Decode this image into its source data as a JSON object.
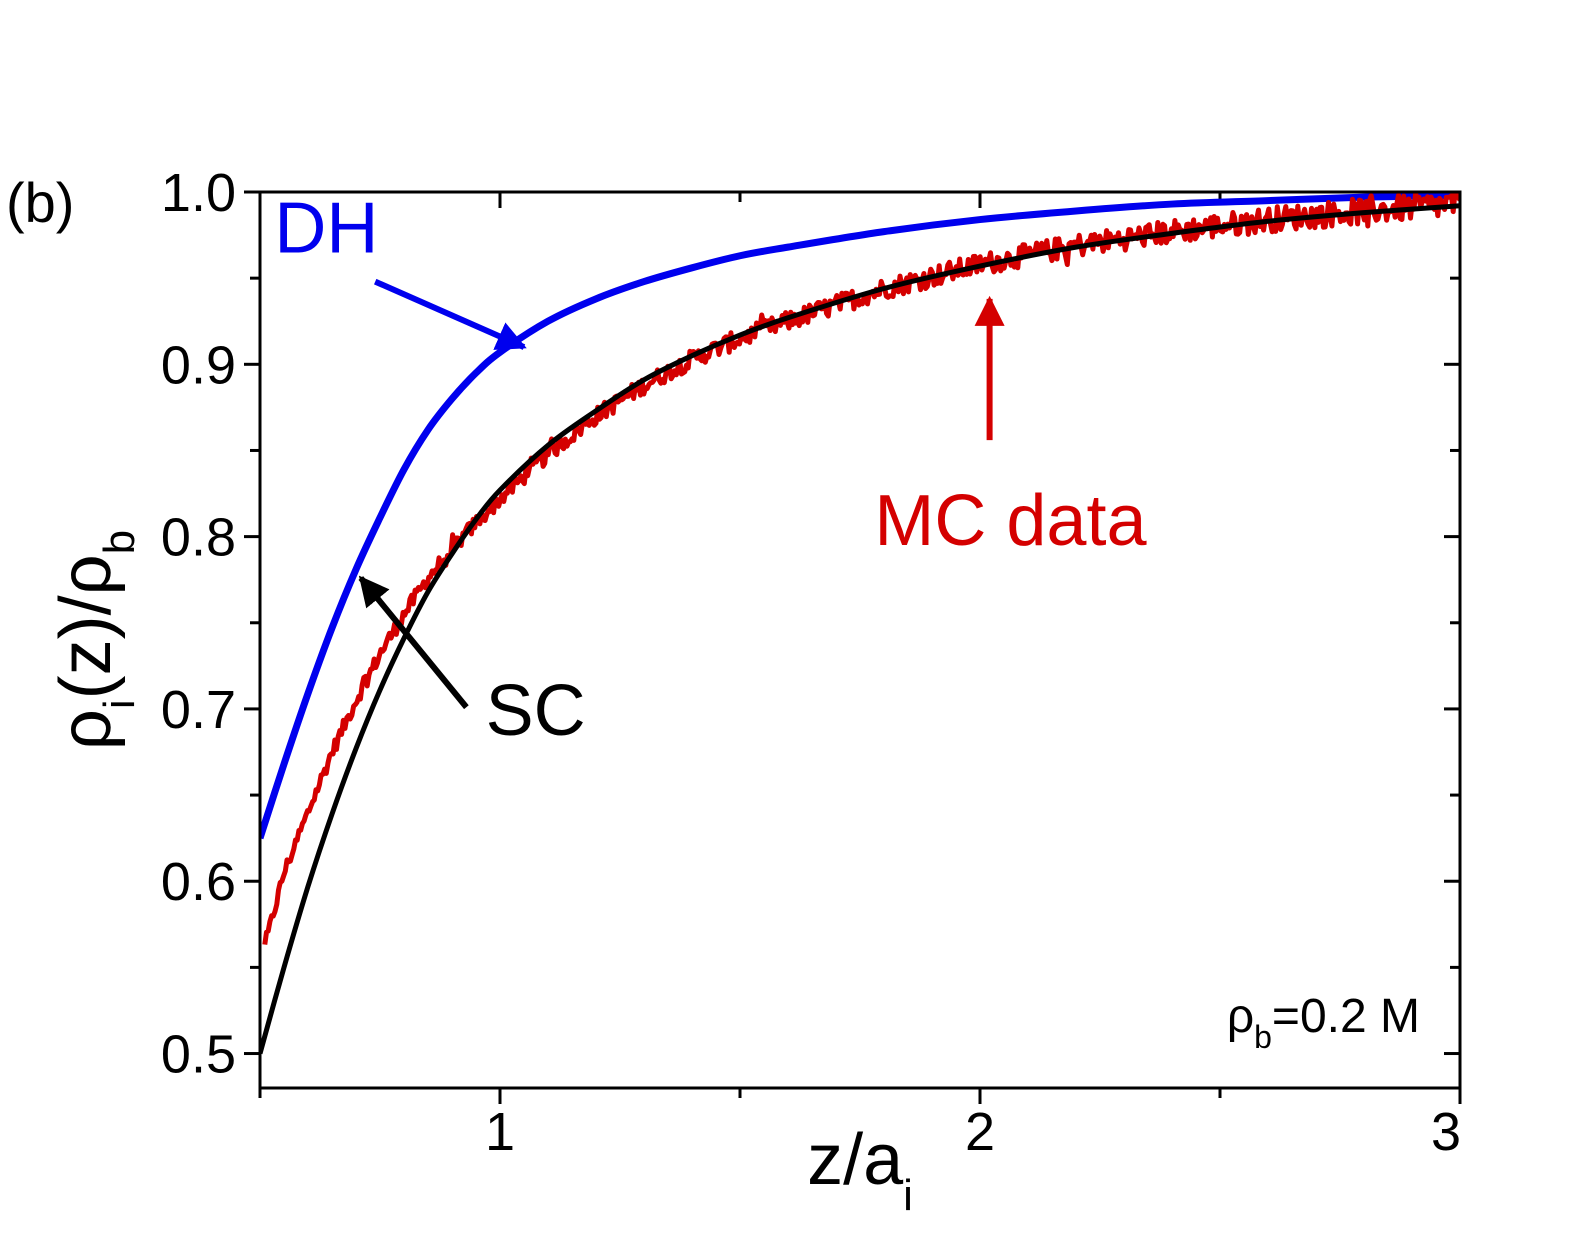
{
  "panel_label": "(b)",
  "chart_data": {
    "type": "line",
    "xlabel": "z/a",
    "xlabel_sub": "i",
    "ylabel_parts": [
      "ρ",
      "i",
      "(z)/ρ",
      "b"
    ],
    "xlim": [
      0.5,
      3.0
    ],
    "ylim": [
      0.48,
      1.0
    ],
    "xticks": [
      1,
      2,
      3
    ],
    "xtick_labels": [
      "1",
      "2",
      "3"
    ],
    "yticks": [
      0.5,
      0.6,
      0.7,
      0.8,
      0.9,
      1.0
    ],
    "ytick_labels": [
      "0.5",
      "0.6",
      "0.7",
      "0.8",
      "0.9",
      "1.0"
    ],
    "legend": "none",
    "grid": false,
    "series": [
      {
        "name": "DH",
        "color": "#0000ee",
        "x": [
          0.5,
          0.55,
          0.6,
          0.65,
          0.7,
          0.75,
          0.8,
          0.85,
          0.9,
          0.95,
          1.0,
          1.1,
          1.2,
          1.3,
          1.4,
          1.5,
          1.6,
          1.8,
          2.0,
          2.2,
          2.4,
          2.6,
          2.8,
          3.0
        ],
        "y": [
          0.625,
          0.668,
          0.709,
          0.747,
          0.781,
          0.811,
          0.839,
          0.862,
          0.88,
          0.895,
          0.907,
          0.925,
          0.938,
          0.948,
          0.956,
          0.963,
          0.968,
          0.977,
          0.984,
          0.989,
          0.993,
          0.995,
          0.997,
          0.998
        ]
      },
      {
        "name": "MC data",
        "color": "#d40000",
        "x": [
          0.51,
          0.55,
          0.6,
          0.65,
          0.7,
          0.75,
          0.8,
          0.85,
          0.9,
          0.95,
          1.0,
          1.1,
          1.2,
          1.3,
          1.4,
          1.5,
          1.6,
          1.8,
          2.0,
          2.2,
          2.4,
          2.6,
          2.8,
          3.0
        ],
        "y": [
          0.562,
          0.605,
          0.64,
          0.675,
          0.705,
          0.732,
          0.755,
          0.776,
          0.793,
          0.808,
          0.822,
          0.848,
          0.87,
          0.888,
          0.903,
          0.915,
          0.925,
          0.944,
          0.958,
          0.969,
          0.977,
          0.984,
          0.989,
          0.993
        ]
      },
      {
        "name": "SC",
        "color": "#000000",
        "x": [
          0.5,
          0.55,
          0.6,
          0.65,
          0.7,
          0.75,
          0.8,
          0.85,
          0.9,
          0.95,
          1.0,
          1.1,
          1.2,
          1.3,
          1.4,
          1.5,
          1.6,
          1.8,
          2.0,
          2.2,
          2.4,
          2.6,
          2.8,
          3.0
        ],
        "y": [
          0.5,
          0.55,
          0.597,
          0.639,
          0.677,
          0.711,
          0.741,
          0.768,
          0.79,
          0.81,
          0.827,
          0.853,
          0.873,
          0.891,
          0.905,
          0.917,
          0.927,
          0.944,
          0.957,
          0.968,
          0.976,
          0.983,
          0.988,
          0.992
        ]
      }
    ],
    "annotations": [
      {
        "text": "DH",
        "color": "#0000ee",
        "x": 0.53,
        "y": 0.965,
        "arrow_from": [
          0.74,
          0.948
        ],
        "arrow_to": [
          1.05,
          0.91
        ]
      },
      {
        "text": "MC data",
        "color": "#d40000",
        "x": 1.78,
        "y": 0.795,
        "arrow_from": [
          2.02,
          0.856
        ],
        "arrow_to": [
          2.02,
          0.938
        ]
      },
      {
        "text": "SC",
        "color": "#000000",
        "x": 0.97,
        "y": 0.685,
        "arrow_from": [
          0.93,
          0.701
        ],
        "arrow_to": [
          0.71,
          0.776
        ]
      }
    ],
    "concentration_label": {
      "prefix": "ρ",
      "sub": "b",
      "suffix": "=0.2 M"
    }
  }
}
